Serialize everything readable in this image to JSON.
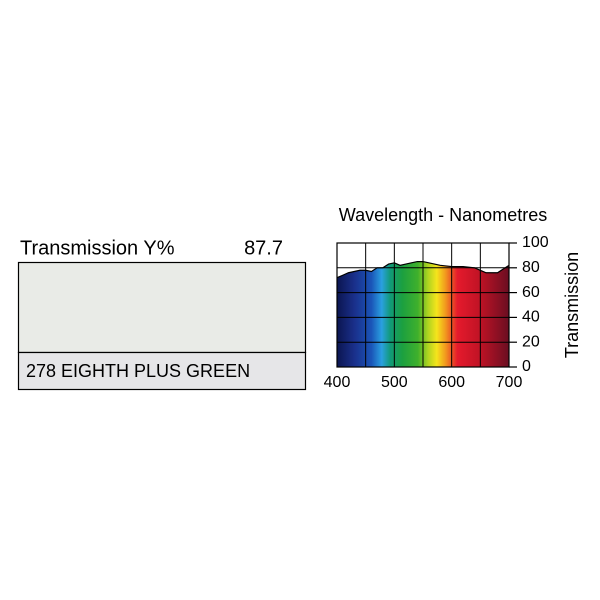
{
  "swatch": {
    "label": "Transmission Y%",
    "value": "87.7",
    "name": "278 EIGHTH PLUS GREEN",
    "color": "#e9ebe7"
  },
  "chart_data": {
    "type": "area",
    "title": "Wavelength - Nanometres",
    "y_label": "Transmission",
    "x": [
      400,
      410,
      420,
      440,
      450,
      460,
      470,
      480,
      490,
      500,
      510,
      520,
      530,
      540,
      550,
      560,
      570,
      580,
      600,
      620,
      640,
      650,
      660,
      670,
      680,
      690,
      700
    ],
    "values": [
      72,
      74,
      76,
      78,
      78,
      77,
      80,
      80,
      83,
      84,
      82,
      83,
      84,
      85,
      85,
      84,
      83,
      82,
      81,
      81,
      80,
      78,
      76,
      76,
      76,
      79,
      82
    ],
    "xlim": [
      400,
      700
    ],
    "ylim": [
      0,
      100
    ],
    "xticks": [
      400,
      450,
      500,
      550,
      600,
      650,
      700
    ],
    "yticks": [
      0,
      20,
      40,
      60,
      80,
      100
    ],
    "grid": true
  }
}
